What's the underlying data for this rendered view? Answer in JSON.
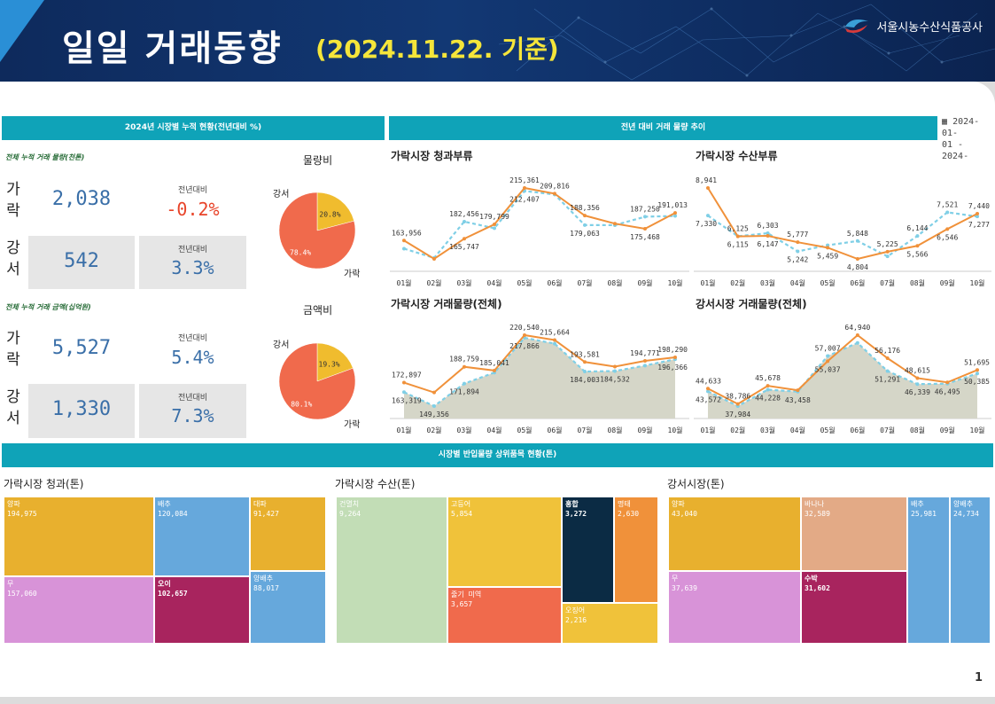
{
  "header": {
    "title": "일일 거래동향",
    "date": "(2024.11.22. 기준)",
    "org": "서울시농수산식품공사"
  },
  "page_number": "1",
  "section_bars": {
    "cumulative": "2024년 시장별 누적 현황(전년대비 %)",
    "trend": "전년 대비 거래 물량 추이",
    "top_items": "시장별 반입물량 상위품목 현황(톤)"
  },
  "date_range": {
    "line1": "2024-01-",
    "line2": "01 - 2024-"
  },
  "volume": {
    "subtitle": "전체 누적 거래 물량(천톤)",
    "pie_title": "물량비",
    "rows": [
      {
        "market": "가\n락",
        "value": "2,038",
        "yoy_label": "전년대비",
        "yoy": "-0.2%",
        "yoy_color": "#e8442a"
      },
      {
        "market": "강\n서",
        "value": "542",
        "yoy_label": "전년대비",
        "yoy": "3.3%",
        "yoy_color": "#3a6fa8"
      }
    ],
    "pie": {
      "labels": [
        "강서",
        "가락"
      ],
      "values": [
        20.8,
        78.4
      ],
      "value_labels": [
        "20.8%",
        "78.4%"
      ],
      "colors": [
        "#f0bc2e",
        "#f06a4c"
      ]
    }
  },
  "amount": {
    "subtitle": "전체 누적 거래 금액(십억원)",
    "pie_title": "금액비",
    "rows": [
      {
        "market": "가\n락",
        "value": "5,527",
        "yoy_label": "전년대비",
        "yoy": "5.4%",
        "yoy_color": "#3a6fa8"
      },
      {
        "market": "강\n서",
        "value": "1,330",
        "yoy_label": "전년대비",
        "yoy": "7.3%",
        "yoy_color": "#3a6fa8"
      }
    ],
    "pie": {
      "labels": [
        "강서",
        "가락"
      ],
      "values": [
        19.3,
        80.1
      ],
      "value_labels": [
        "19.3%",
        "80.1%"
      ],
      "colors": [
        "#f0bc2e",
        "#f06a4c"
      ]
    }
  },
  "chart_data": [
    {
      "type": "line",
      "title": "가락시장 청과부류",
      "categories": [
        "01월",
        "02월",
        "03월",
        "04월",
        "05월",
        "06월",
        "07월",
        "08월",
        "09월",
        "10월"
      ],
      "series": [
        {
          "values": [
            163956,
            146000,
            165747,
            179799,
            215361,
            209816,
            188356,
            180500,
            175468,
            191013
          ],
          "labels": [
            "163,956",
            "",
            "165,747",
            "179,799",
            "215,361",
            "209,816",
            "188,356",
            "",
            "175,468",
            "191,013"
          ]
        },
        {
          "values": [
            156000,
            147000,
            182456,
            176000,
            212407,
            209000,
            179063,
            179000,
            187250,
            188000
          ],
          "labels": [
            "",
            "",
            "182,456",
            "",
            "212,407",
            "",
            "179,063",
            "",
            "187,250",
            ""
          ]
        }
      ]
    },
    {
      "type": "line",
      "title": "가락시장 수산부류",
      "categories": [
        "01월",
        "02월",
        "03월",
        "04월",
        "05월",
        "06월",
        "07월",
        "08월",
        "09월",
        "10월"
      ],
      "series": [
        {
          "values": [
            8941,
            6115,
            6147,
            5777,
            5459,
            4804,
            5225,
            5566,
            6546,
            7440
          ],
          "labels": [
            "8,941",
            "6,115",
            "6,147",
            "5,777",
            "5,459",
            "4,804",
            "5,225",
            "5,566",
            "6,546",
            "7,440"
          ]
        },
        {
          "values": [
            7330,
            6125,
            6303,
            5242,
            5600,
            5848,
            4950,
            6144,
            7521,
            7277
          ],
          "labels": [
            "7,330",
            "6,125",
            "6,303",
            "5,242",
            "",
            "5,848",
            "",
            "6,144",
            "7,521",
            "7,277"
          ]
        }
      ]
    },
    {
      "type": "area",
      "title": "가락시장 거래물량(전체)",
      "categories": [
        "01월",
        "02월",
        "03월",
        "04월",
        "05월",
        "06월",
        "07월",
        "08월",
        "09월",
        "10월"
      ],
      "series": [
        {
          "values": [
            172897,
            163000,
            188759,
            185041,
            220540,
            215664,
            193581,
            189000,
            194771,
            198290
          ],
          "labels": [
            "172,897",
            "",
            "188,759",
            "185,041",
            "220,540",
            "215,664",
            "193,581",
            "",
            "194,771",
            "198,290"
          ]
        },
        {
          "values": [
            163319,
            149356,
            171894,
            183000,
            217866,
            212000,
            184003,
            184532,
            190000,
            196366
          ],
          "labels": [
            "163,319",
            "149,356",
            "171,894",
            "",
            "217,866",
            "",
            "184,003",
            "184,532",
            "",
            "196,366"
          ]
        }
      ]
    },
    {
      "type": "area",
      "title": "강서시장 거래물량(전체)",
      "categories": [
        "01월",
        "02월",
        "03월",
        "04월",
        "05월",
        "06월",
        "07월",
        "08월",
        "09월",
        "10월"
      ],
      "series": [
        {
          "values": [
            44633,
            38786,
            45678,
            44000,
            55037,
            64940,
            56176,
            48615,
            47000,
            51695
          ],
          "labels": [
            "44,633",
            "38,786",
            "45,678",
            "",
            "55,037",
            "64,940",
            "56,176",
            "48,615",
            "",
            "51,695"
          ]
        },
        {
          "values": [
            43572,
            37984,
            44228,
            43458,
            57007,
            62000,
            51291,
            46339,
            46495,
            50385
          ],
          "labels": [
            "43,572",
            "37,984",
            "44,228",
            "43,458",
            "57,007",
            "",
            "51,291",
            "46,339",
            "46,495",
            "50,385"
          ]
        }
      ]
    }
  ],
  "treemaps": [
    {
      "title": "가락시장 청과(톤)",
      "items": [
        {
          "name": "양파",
          "value": "194,975",
          "color": "#e8b02e",
          "bold": false
        },
        {
          "name": "배추",
          "value": "120,084",
          "color": "#66a8dc",
          "bold": false
        },
        {
          "name": "대파",
          "value": "91,427",
          "color": "#e8b02e",
          "bold": false
        },
        {
          "name": "무",
          "value": "157,060",
          "color": "#d893d8",
          "bold": false
        },
        {
          "name": "오이",
          "value": "102,657",
          "color": "#a8245e",
          "bold": true
        },
        {
          "name": "양배추",
          "value": "88,017",
          "color": "#66a8dc",
          "bold": false
        }
      ]
    },
    {
      "title": "가락시장 수산(톤)",
      "items": [
        {
          "name": "건멸치",
          "value": "9,264",
          "color": "#c2ddb6",
          "bold": false
        },
        {
          "name": "고등어",
          "value": "5,854",
          "color": "#f0c23a",
          "bold": false
        },
        {
          "name": "홍합",
          "value": "3,272",
          "color": "#0b2b44",
          "bold": true
        },
        {
          "name": "명태",
          "value": "2,630",
          "color": "#f0913a",
          "bold": false
        },
        {
          "name": "줄기 미역",
          "value": "3,657",
          "color": "#f06a4c",
          "bold": false
        },
        {
          "name": "오징어",
          "value": "2,216",
          "color": "#f0c23a",
          "bold": false
        }
      ]
    },
    {
      "title": "강서시장(톤)",
      "items": [
        {
          "name": "양파",
          "value": "43,040",
          "color": "#e8b02e",
          "bold": false
        },
        {
          "name": "바나나",
          "value": "32,589",
          "color": "#e3aa86",
          "bold": false
        },
        {
          "name": "배추",
          "value": "25,981",
          "color": "#66a8dc",
          "bold": false
        },
        {
          "name": "양배추",
          "value": "24,734",
          "color": "#66a8dc",
          "bold": false
        },
        {
          "name": "무",
          "value": "37,639",
          "color": "#d893d8",
          "bold": false
        },
        {
          "name": "수박",
          "value": "31,602",
          "color": "#a8245e",
          "bold": true
        }
      ]
    }
  ]
}
